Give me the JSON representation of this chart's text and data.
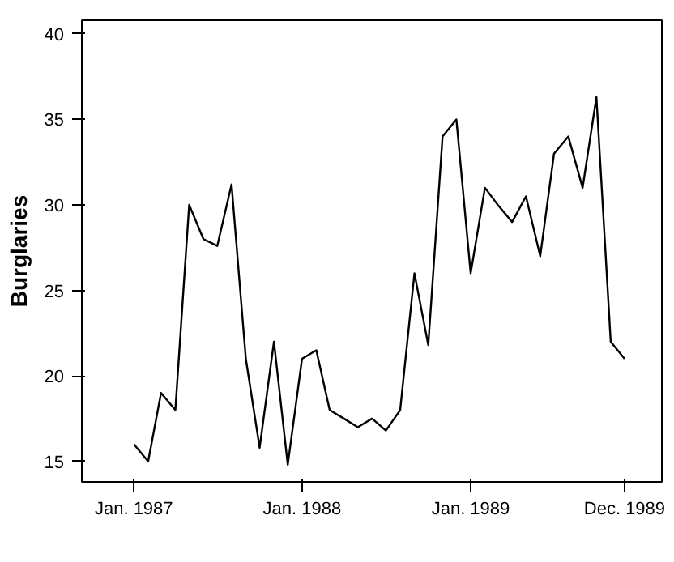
{
  "chart_data": {
    "type": "line",
    "ylabel": "Burglaries",
    "x": [
      "1987-01",
      "1987-02",
      "1987-03",
      "1987-04",
      "1987-05",
      "1987-06",
      "1987-07",
      "1987-08",
      "1987-09",
      "1987-10",
      "1987-11",
      "1987-12",
      "1988-01",
      "1988-02",
      "1988-03",
      "1988-04",
      "1988-05",
      "1988-06",
      "1988-07",
      "1988-08",
      "1988-09",
      "1988-10",
      "1988-11",
      "1988-12",
      "1989-01",
      "1989-02",
      "1989-03",
      "1989-04",
      "1989-05",
      "1989-06",
      "1989-07",
      "1989-08",
      "1989-09",
      "1989-10",
      "1989-11",
      "1989-12"
    ],
    "series": [
      {
        "color": "#000000",
        "values": [
          16,
          15,
          19,
          18,
          30,
          28,
          27.6,
          31.2,
          21,
          15.8,
          22,
          14.8,
          21,
          21.5,
          18,
          17.5,
          17,
          17.5,
          16.8,
          18,
          26,
          21.8,
          34,
          35,
          26,
          31,
          30,
          29,
          30.5,
          27,
          33,
          34,
          31,
          36.3,
          22,
          21
        ]
      }
    ],
    "xlim": [
      "1986-09-10",
      "1990-02-20"
    ],
    "xticks": [
      {
        "value": "1987-01",
        "label": "Jan. 1987"
      },
      {
        "value": "1988-01",
        "label": "Jan. 1988"
      },
      {
        "value": "1989-01",
        "label": "Jan. 1989"
      },
      {
        "value": "1989-12",
        "label": "Dec. 1989"
      }
    ],
    "ylim": [
      13.8,
      40.8
    ],
    "yticks": [
      15,
      20,
      25,
      30,
      35,
      40
    ],
    "grid": false,
    "marker": "none",
    "line_style": "solid"
  }
}
